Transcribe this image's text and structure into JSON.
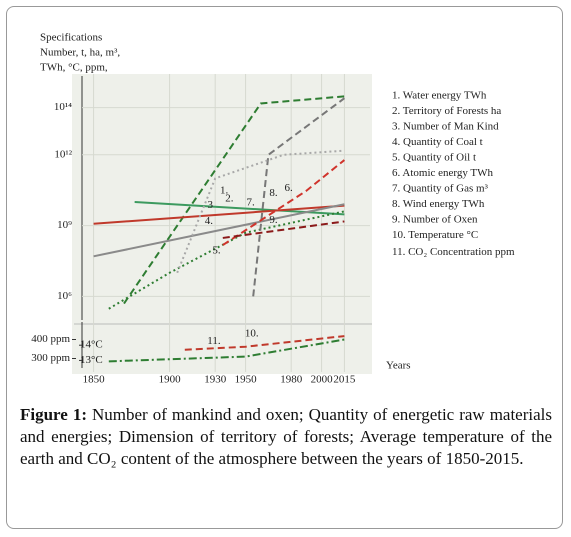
{
  "chart_data": [
    {
      "type": "line",
      "ylog": true,
      "grid": true,
      "ylabel": [
        "Specifications",
        "Number, t, ha, m³,",
        "TWh, °C, ppm,"
      ],
      "xlabel": "Years",
      "xlim": [
        1845,
        2020
      ],
      "xticks": [
        1850,
        1900,
        1930,
        1950,
        1980,
        2000,
        2015
      ],
      "ylim": [
        100000,
        1000000000000000
      ],
      "yticks": [
        {
          "value": 1000000,
          "label": "10⁶"
        },
        {
          "value": 1000000000,
          "label": "10⁹"
        },
        {
          "value": 1000000000000,
          "label": "10¹²"
        },
        {
          "value": 100000000000000,
          "label": "10¹⁴"
        }
      ],
      "series": [
        {
          "name": "1. Water energy  TWh",
          "label": "1.",
          "color": "#2e7d32",
          "dash": "dashed",
          "x": [
            1870,
            1960,
            2015
          ],
          "values": [
            500000,
            150000000000000,
            300000000000000
          ]
        },
        {
          "name": "2. Territory of Forests  ha",
          "label": "2.",
          "color": "#3c9a5f",
          "dash": "solid",
          "x": [
            1877,
            2015
          ],
          "values": [
            10000000000,
            3000000000
          ]
        },
        {
          "name": "3. Number of Man Kind",
          "label": "3",
          "color": "#c0392b",
          "dash": "solid",
          "x": [
            1850,
            2015
          ],
          "values": [
            1200000000,
            7000000000
          ]
        },
        {
          "name": "4. Quantity of Coal  t",
          "label": "4.",
          "color": "#8a8a8a",
          "dash": "solid",
          "x": [
            1850,
            2015
          ],
          "values": [
            50000000,
            8000000000
          ]
        },
        {
          "name": "5. Quantity of Oil t",
          "label": "5.",
          "color": "#2e7d32",
          "dash": "dotted",
          "x": [
            1860,
            1900,
            1950,
            2015
          ],
          "values": [
            300000,
            10000000,
            500000000,
            4000000000
          ]
        },
        {
          "name": "6. Atomic energy  TWh",
          "label": "6.",
          "color": "#777777",
          "dash": "dashed",
          "x": [
            1955,
            1965,
            2015
          ],
          "values": [
            1000000,
            1000000000000,
            250000000000000
          ]
        },
        {
          "name": "7. Quantity of Gas  m³",
          "label": "7.",
          "color": "#a8a8a8",
          "dash": "dotted",
          "x": [
            1905,
            1930,
            1975,
            2015
          ],
          "values": [
            10000000,
            100000000000,
            1000000000000,
            1500000000000
          ]
        },
        {
          "name": "8. Wind energy  TWh",
          "label": "8.",
          "color": "#d0342c",
          "dash": "dashed",
          "x": [
            1935,
            1990,
            2015
          ],
          "values": [
            150000000,
            30000000000,
            600000000000
          ]
        },
        {
          "name": "9. Number of Oxen",
          "label": "9.",
          "color": "#8b1a1a",
          "dash": "dashed",
          "x": [
            1935,
            2015
          ],
          "values": [
            300000000,
            1500000000
          ]
        }
      ]
    },
    {
      "type": "line",
      "xlim": [
        1845,
        2020
      ],
      "ylim": [
        12.5,
        15
      ],
      "yticks": [
        {
          "value": 13,
          "label": "13°C"
        },
        {
          "value": 14,
          "label": "14°C"
        }
      ],
      "y2lim": [
        250,
        450
      ],
      "y2ticks": [
        {
          "value": 300,
          "label": "300 ppm"
        },
        {
          "value": 400,
          "label": "400 ppm"
        }
      ],
      "series": [
        {
          "name": "10. Temperature °C",
          "label": "10.",
          "color": "#c0392b",
          "dash": "dashed",
          "x": [
            1910,
            1950,
            2015
          ],
          "values": [
            13.7,
            13.9,
            14.6
          ]
        },
        {
          "name": "11. CO₂ Concentration  ppm",
          "label": "11.",
          "color": "#2e7d32",
          "dash": "dashdot",
          "axis": "y2",
          "x": [
            1860,
            1950,
            2015
          ],
          "values": [
            285,
            310,
            400
          ]
        }
      ]
    }
  ],
  "caption": {
    "label": "Figure 1:",
    "text": "Number of mankind and oxen; Quantity of energetic raw materials and energies; Dimension of territory of forests; Average temperature of the earth and CO₂ content of the atmosphere between the years of 1850-2015."
  }
}
